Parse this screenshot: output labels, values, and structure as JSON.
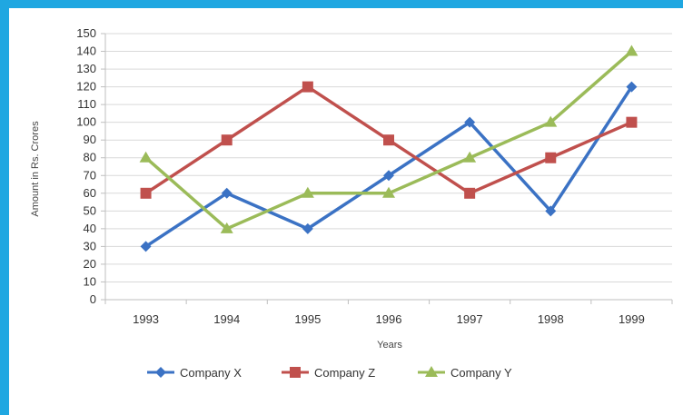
{
  "chart_data": {
    "type": "line",
    "title": "",
    "xlabel": "Years",
    "ylabel": "Amount in Rs. Crores",
    "categories": [
      "1993",
      "1994",
      "1995",
      "1996",
      "1997",
      "1998",
      "1999"
    ],
    "yticks": [
      "0",
      "10",
      "20",
      "30",
      "40",
      "50",
      "60",
      "70",
      "80",
      "90",
      "100",
      "110",
      "120",
      "130",
      "140",
      "150"
    ],
    "ylim": [
      0,
      150
    ],
    "grid": true,
    "legend_position": "bottom",
    "series": [
      {
        "name": "Company X",
        "color": "#3b72c4",
        "marker": "diamond",
        "values": [
          30,
          60,
          40,
          70,
          100,
          50,
          120
        ]
      },
      {
        "name": "Company Z",
        "color": "#c0504d",
        "marker": "square",
        "values": [
          60,
          90,
          120,
          90,
          60,
          80,
          100
        ]
      },
      {
        "name": "Company Y",
        "color": "#9bbb59",
        "marker": "triangle",
        "values": [
          80,
          40,
          60,
          60,
          80,
          100,
          140
        ]
      }
    ]
  }
}
